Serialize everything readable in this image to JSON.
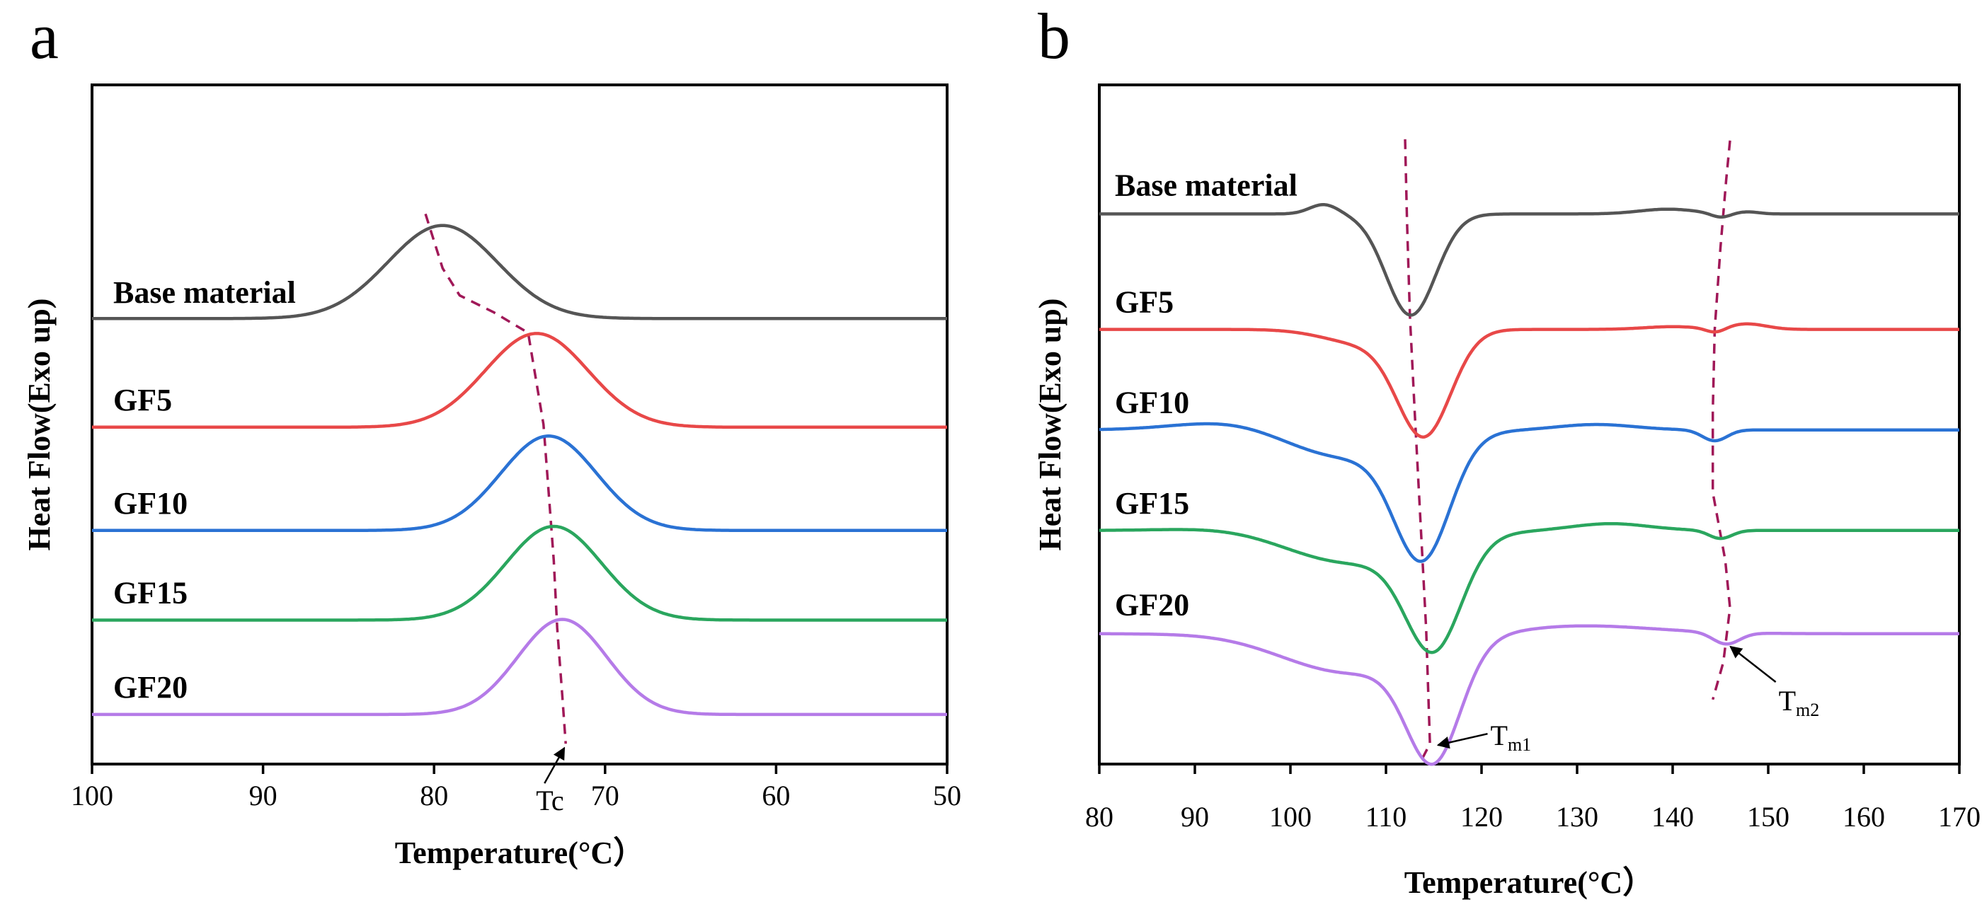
{
  "chart_data": [
    {
      "type": "line",
      "panel": "a",
      "xlabel": "Temperature(°C）",
      "ylabel": "Heat Flow(Exo up)",
      "xlim": [
        100,
        50
      ],
      "xticks": [
        "100",
        "90",
        "80",
        "70",
        "60",
        "50"
      ],
      "grid": false,
      "series": [
        {
          "name": "Base material",
          "color": "#555555",
          "baseline": 0.656,
          "peaks": [
            {
              "x": 79.5,
              "height": 0.137,
              "width": 3.2
            }
          ]
        },
        {
          "name": "GF5",
          "color": "#e84848",
          "baseline": 0.496,
          "peaks": [
            {
              "x": 74.0,
              "height": 0.138,
              "width": 3.0
            }
          ]
        },
        {
          "name": "GF10",
          "color": "#2a72d4",
          "baseline": 0.344,
          "peaks": [
            {
              "x": 73.3,
              "height": 0.139,
              "width": 2.8
            }
          ]
        },
        {
          "name": "GF15",
          "color": "#2aa65e",
          "baseline": 0.212,
          "peaks": [
            {
              "x": 73.0,
              "height": 0.138,
              "width": 2.8
            }
          ]
        },
        {
          "name": "GF20",
          "color": "#b57be8",
          "baseline": 0.073,
          "peaks": [
            {
              "x": 72.5,
              "height": 0.14,
              "width": 2.6
            }
          ]
        }
      ],
      "guide_line": [
        [
          80.5,
          0.81
        ],
        [
          79.5,
          0.73
        ],
        [
          78.5,
          0.69
        ],
        [
          76.5,
          0.665
        ],
        [
          74.5,
          0.635
        ],
        [
          73.6,
          0.5
        ],
        [
          73.3,
          0.4
        ],
        [
          73.0,
          0.3
        ],
        [
          72.8,
          0.2
        ],
        [
          72.5,
          0.1
        ],
        [
          72.3,
          0.03
        ]
      ],
      "annotations": [
        {
          "text": "Tc",
          "x": 72.3,
          "y": 0.03
        }
      ]
    },
    {
      "type": "line",
      "panel": "b",
      "xlabel": "Temperature(°C）",
      "ylabel": "Heat Flow(Exo up)",
      "xlim": [
        80,
        170
      ],
      "xticks": [
        "80",
        "90",
        "100",
        "110",
        "120",
        "130",
        "140",
        "150",
        "160",
        "170"
      ],
      "grid": false,
      "series": [
        {
          "name": "Base material",
          "color": "#555555",
          "baseline": 0.81,
          "peaks": [
            {
              "x": 112.6,
              "height": -0.149,
              "width": 2.6
            },
            {
              "x": 103.5,
              "height": 0.014,
              "width": 1.5
            },
            {
              "x": 139.5,
              "height": 0.007,
              "width": 3.0
            },
            {
              "x": 145.0,
              "height": -0.006,
              "width": 1.0
            },
            {
              "x": 147.8,
              "height": 0.003,
              "width": 1.2
            }
          ]
        },
        {
          "name": "GF5",
          "color": "#e84848",
          "baseline": 0.64,
          "peaks": [
            {
              "x": 114.0,
              "height": -0.153,
              "width": 2.8
            },
            {
              "x": 107.5,
              "height": -0.02,
              "width": 4.0
            },
            {
              "x": 140.0,
              "height": 0.004,
              "width": 3.0
            },
            {
              "x": 144.5,
              "height": -0.007,
              "width": 1.0
            },
            {
              "x": 147.8,
              "height": 0.008,
              "width": 2.0
            }
          ]
        },
        {
          "name": "GF10",
          "color": "#2a72d4",
          "baseline": 0.492,
          "peaks": [
            {
              "x": 113.8,
              "height": -0.173,
              "width": 2.9
            },
            {
              "x": 105.0,
              "height": -0.045,
              "width": 7.0
            },
            {
              "x": 95.5,
              "height": 0.02,
              "width": 6.0
            },
            {
              "x": 132.0,
              "height": 0.008,
              "width": 4.0
            },
            {
              "x": 144.4,
              "height": -0.016,
              "width": 1.3
            }
          ]
        },
        {
          "name": "GF15",
          "color": "#2aa65e",
          "baseline": 0.344,
          "peaks": [
            {
              "x": 115.0,
              "height": -0.155,
              "width": 2.9
            },
            {
              "x": 106.0,
              "height": -0.05,
              "width": 7.5
            },
            {
              "x": 96.0,
              "height": 0.01,
              "width": 6.0
            },
            {
              "x": 133.5,
              "height": 0.01,
              "width": 4.0
            },
            {
              "x": 145.0,
              "height": -0.012,
              "width": 1.2
            }
          ]
        },
        {
          "name": "GF20",
          "color": "#b57be8",
          "baseline": 0.192,
          "peaks": [
            {
              "x": 115.0,
              "height": -0.162,
              "width": 2.8
            },
            {
              "x": 106.0,
              "height": -0.06,
              "width": 8.0
            },
            {
              "x": 96.5,
              "height": 0.008,
              "width": 6.0
            },
            {
              "x": 130.0,
              "height": 0.012,
              "width": 8.0
            },
            {
              "x": 145.6,
              "height": -0.017,
              "width": 1.4
            }
          ]
        }
      ],
      "guide_lines": [
        [
          [
            112.0,
            0.92
          ],
          [
            112.2,
            0.8
          ],
          [
            112.5,
            0.66
          ],
          [
            113.0,
            0.52
          ],
          [
            113.6,
            0.36
          ],
          [
            114.2,
            0.2
          ],
          [
            114.6,
            0.03
          ],
          [
            113.5,
            0.0
          ]
        ],
        [
          [
            146.0,
            0.918
          ],
          [
            145.6,
            0.86
          ],
          [
            145.0,
            0.76
          ],
          [
            144.4,
            0.64
          ],
          [
            144.2,
            0.52
          ],
          [
            144.2,
            0.4
          ],
          [
            145.5,
            0.3
          ],
          [
            146.0,
            0.23
          ],
          [
            145.3,
            0.15
          ],
          [
            144.2,
            0.095
          ]
        ]
      ],
      "annotations": [
        {
          "text": "T",
          "sub": "m1",
          "x": 115.0,
          "y": 0.03
        },
        {
          "text": "T",
          "sub": "m2",
          "x": 145.6,
          "y": 0.175
        }
      ]
    }
  ]
}
